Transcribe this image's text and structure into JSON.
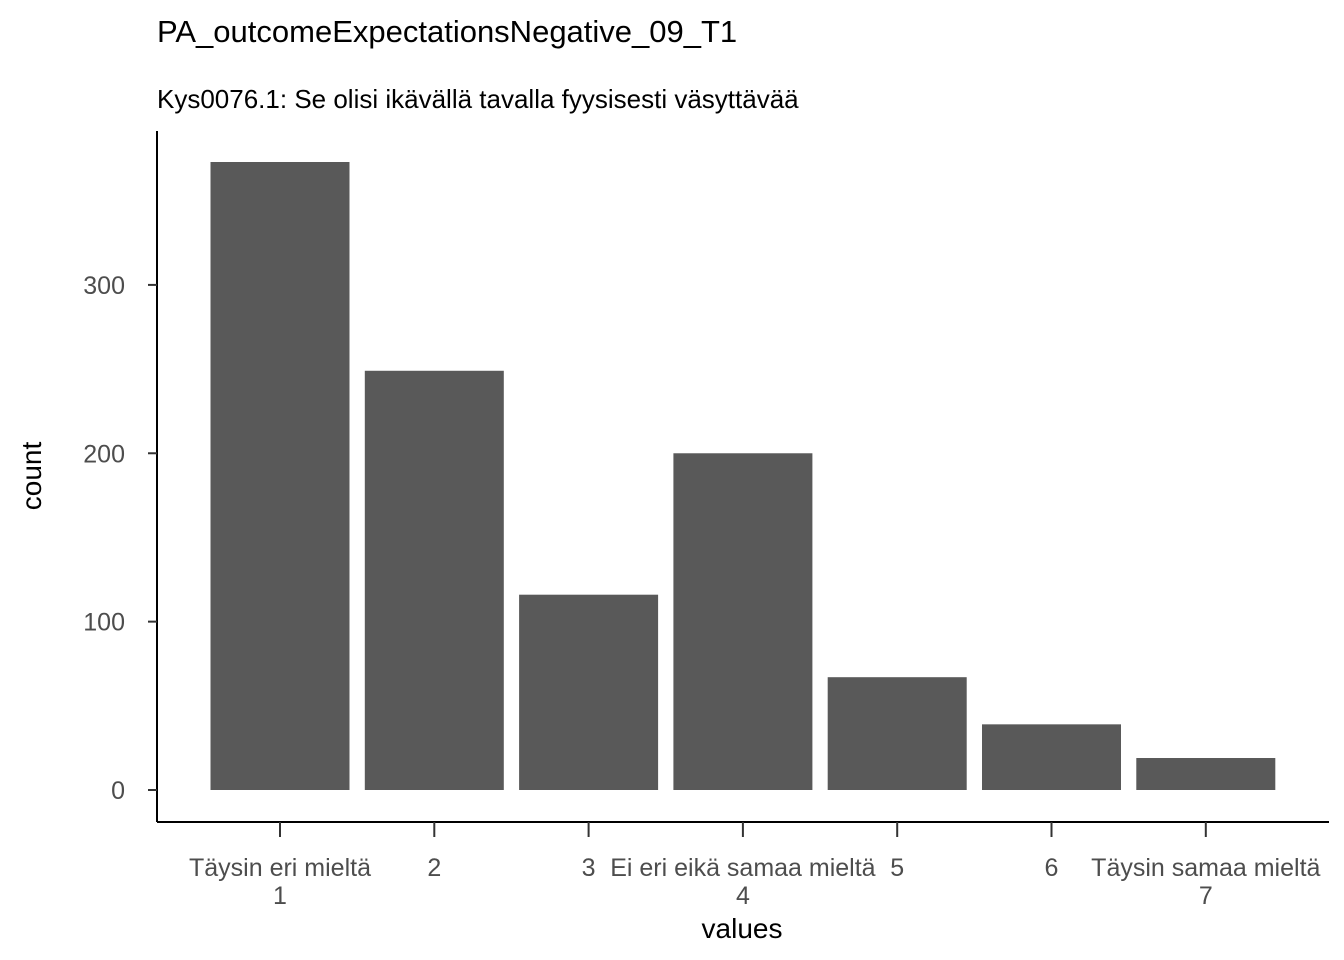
{
  "chart_data": {
    "type": "bar",
    "title": "PA_outcomeExpectationsNegative_09_T1",
    "subtitle": "Kys0076.1: Se olisi ikävällä tavalla fyysisesti väsyttävää",
    "xlabel": "values",
    "ylabel": "count",
    "categories": [
      "1",
      "2",
      "3",
      "4",
      "5",
      "6",
      "7"
    ],
    "category_labels": [
      [
        "Täysin eri mieltä",
        "1"
      ],
      [
        "2"
      ],
      [
        "3"
      ],
      [
        "Ei eri eikä samaa mieltä",
        "4"
      ],
      [
        "5"
      ],
      [
        "6"
      ],
      [
        "Täysin samaa mieltä",
        "7"
      ]
    ],
    "values": [
      373,
      249,
      116,
      200,
      67,
      39,
      19
    ],
    "ylim": [
      0,
      373
    ],
    "yticks": [
      0,
      100,
      200,
      300
    ],
    "bar_color": "#595959",
    "grid": false,
    "legend": "none"
  }
}
